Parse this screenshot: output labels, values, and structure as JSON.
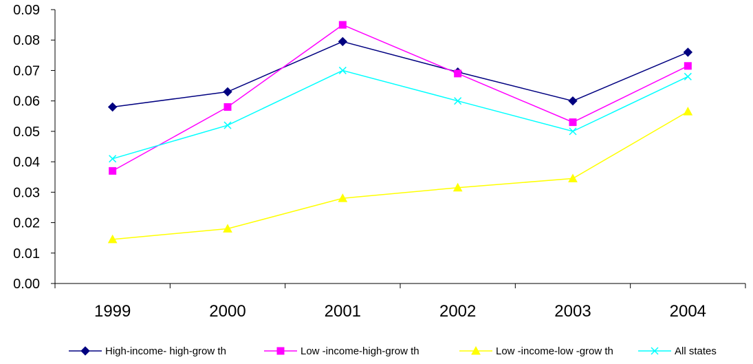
{
  "chart_data": {
    "type": "line",
    "categories": [
      "1999",
      "2000",
      "2001",
      "2002",
      "2003",
      "2004"
    ],
    "ylim": [
      0,
      0.09
    ],
    "yticks": [
      "0.00",
      "0.01",
      "0.02",
      "0.03",
      "0.04",
      "0.05",
      "0.06",
      "0.07",
      "0.08",
      "0.09"
    ],
    "grid": false,
    "legend_position": "bottom",
    "series": [
      {
        "name": "High-income- high-grow th",
        "color": "#000080",
        "marker": "diamond",
        "values": [
          0.058,
          0.063,
          0.0795,
          0.0695,
          0.06,
          0.076
        ]
      },
      {
        "name": "Low -income-high-grow th",
        "color": "#FF00FF",
        "marker": "square",
        "values": [
          0.037,
          0.058,
          0.085,
          0.069,
          0.053,
          0.0715
        ]
      },
      {
        "name": "Low -income-low -grow th",
        "color": "#FFFF00",
        "marker": "triangle",
        "values": [
          0.0145,
          0.018,
          0.028,
          0.0315,
          0.0345,
          0.0565
        ]
      },
      {
        "name": "All states",
        "color": "#00FFFF",
        "marker": "x",
        "values": [
          0.041,
          0.052,
          0.07,
          0.06,
          0.05,
          0.068
        ]
      }
    ]
  }
}
